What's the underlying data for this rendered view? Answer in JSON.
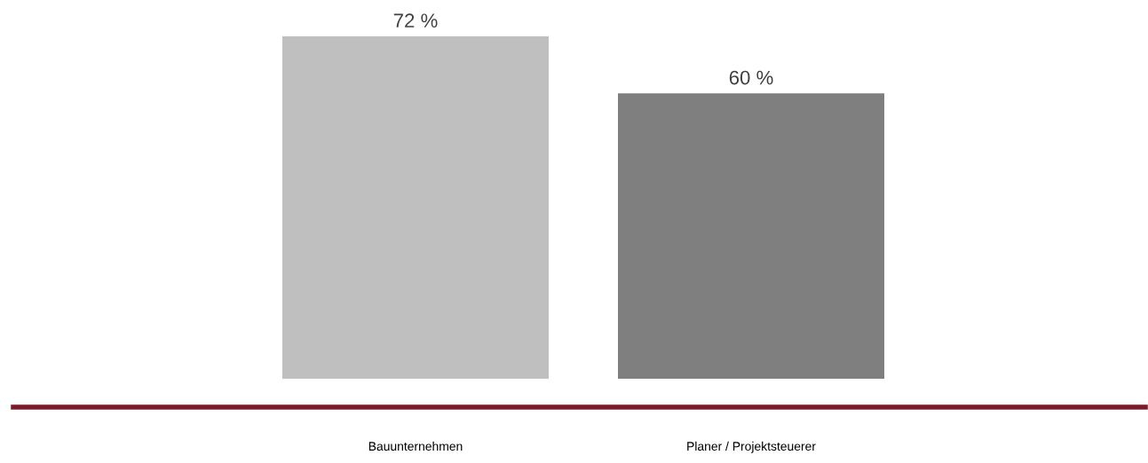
{
  "chart_data": {
    "type": "bar",
    "categories": [
      "Bauunternehmen",
      "Planer / Projektsteuerer"
    ],
    "values": [
      72,
      60
    ],
    "colors": [
      "#bfbfbf",
      "#7f7f7f"
    ],
    "value_labels": [
      "72 %",
      "60 %"
    ],
    "grid": false,
    "legend": false
  }
}
